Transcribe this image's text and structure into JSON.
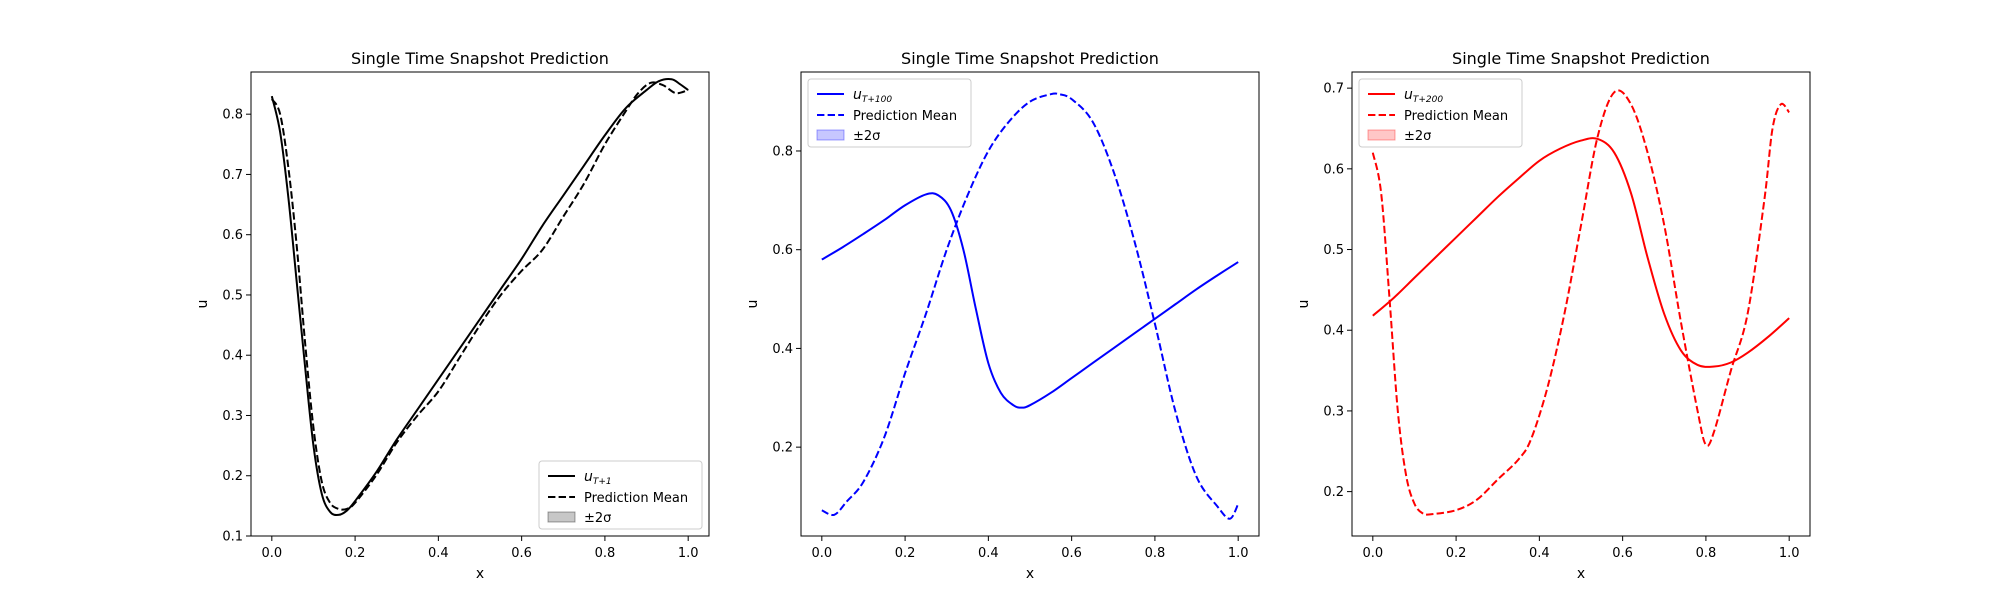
{
  "chart_data": [
    {
      "type": "line",
      "title": "Single Time Snapshot Prediction",
      "xlabel": "x",
      "ylabel": "u",
      "xlim": [
        -0.05,
        1.05
      ],
      "ylim": [
        0.1,
        0.87
      ],
      "xticks": [
        "0.0",
        "0.2",
        "0.4",
        "0.6",
        "0.8",
        "1.0"
      ],
      "yticks": [
        "0.1",
        "0.2",
        "0.3",
        "0.4",
        "0.5",
        "0.6",
        "0.7",
        "0.8"
      ],
      "color": "#000000",
      "legend_position": "lower right",
      "legend": [
        "u_{T+1}",
        "Prediction Mean",
        "±2σ"
      ],
      "legend_base": "u",
      "legend_sub": "T+1",
      "series": [
        {
          "name": "u_{T+1}",
          "style": "solid",
          "x": [
            0.0,
            0.02,
            0.04,
            0.06,
            0.08,
            0.1,
            0.12,
            0.14,
            0.16,
            0.18,
            0.2,
            0.25,
            0.3,
            0.35,
            0.4,
            0.45,
            0.5,
            0.55,
            0.6,
            0.65,
            0.7,
            0.75,
            0.8,
            0.85,
            0.9,
            0.93,
            0.96,
            0.98,
            1.0
          ],
          "y": [
            0.83,
            0.77,
            0.66,
            0.52,
            0.38,
            0.25,
            0.17,
            0.14,
            0.135,
            0.142,
            0.158,
            0.205,
            0.26,
            0.31,
            0.36,
            0.41,
            0.46,
            0.51,
            0.56,
            0.615,
            0.665,
            0.715,
            0.765,
            0.81,
            0.84,
            0.855,
            0.858,
            0.85,
            0.84
          ]
        },
        {
          "name": "Prediction Mean",
          "style": "dashed",
          "x": [
            0.0,
            0.02,
            0.04,
            0.06,
            0.08,
            0.1,
            0.12,
            0.14,
            0.16,
            0.18,
            0.2,
            0.25,
            0.3,
            0.35,
            0.4,
            0.45,
            0.5,
            0.55,
            0.6,
            0.65,
            0.7,
            0.75,
            0.8,
            0.85,
            0.88,
            0.91,
            0.94,
            0.97,
            1.0
          ],
          "y": [
            0.825,
            0.8,
            0.71,
            0.58,
            0.42,
            0.28,
            0.19,
            0.155,
            0.145,
            0.145,
            0.155,
            0.2,
            0.255,
            0.3,
            0.34,
            0.395,
            0.45,
            0.5,
            0.54,
            0.575,
            0.63,
            0.685,
            0.75,
            0.805,
            0.835,
            0.852,
            0.848,
            0.835,
            0.84
          ]
        }
      ]
    },
    {
      "type": "line",
      "title": "Single Time Snapshot Prediction",
      "xlabel": "x",
      "ylabel": "u",
      "xlim": [
        -0.05,
        1.05
      ],
      "ylim": [
        0.02,
        0.96
      ],
      "xticks": [
        "0.0",
        "0.2",
        "0.4",
        "0.6",
        "0.8",
        "1.0"
      ],
      "yticks": [
        "0.2",
        "0.4",
        "0.6",
        "0.8"
      ],
      "color": "#0000ff",
      "legend_position": "upper left",
      "legend": [
        "u_{T+100}",
        "Prediction Mean",
        "±2σ"
      ],
      "legend_base": "u",
      "legend_sub": "T+100",
      "series": [
        {
          "name": "u_{T+100}",
          "style": "solid",
          "x": [
            0.0,
            0.05,
            0.1,
            0.15,
            0.2,
            0.25,
            0.28,
            0.31,
            0.34,
            0.37,
            0.4,
            0.43,
            0.46,
            0.48,
            0.5,
            0.55,
            0.6,
            0.65,
            0.7,
            0.75,
            0.8,
            0.85,
            0.9,
            0.95,
            1.0
          ],
          "y": [
            0.58,
            0.605,
            0.632,
            0.66,
            0.69,
            0.712,
            0.71,
            0.68,
            0.6,
            0.48,
            0.37,
            0.31,
            0.285,
            0.28,
            0.285,
            0.31,
            0.34,
            0.37,
            0.4,
            0.43,
            0.46,
            0.49,
            0.52,
            0.548,
            0.575
          ]
        },
        {
          "name": "Prediction Mean",
          "style": "dashed",
          "x": [
            0.0,
            0.03,
            0.06,
            0.1,
            0.15,
            0.2,
            0.25,
            0.3,
            0.35,
            0.4,
            0.45,
            0.5,
            0.55,
            0.57,
            0.6,
            0.65,
            0.7,
            0.75,
            0.8,
            0.85,
            0.9,
            0.95,
            0.98,
            1.0
          ],
          "y": [
            0.072,
            0.063,
            0.09,
            0.13,
            0.22,
            0.35,
            0.47,
            0.6,
            0.71,
            0.8,
            0.86,
            0.9,
            0.915,
            0.915,
            0.905,
            0.86,
            0.76,
            0.62,
            0.45,
            0.27,
            0.14,
            0.08,
            0.055,
            0.085
          ]
        }
      ]
    },
    {
      "type": "line",
      "title": "Single Time Snapshot Prediction",
      "xlabel": "x",
      "ylabel": "u",
      "xlim": [
        -0.05,
        1.05
      ],
      "ylim": [
        0.145,
        0.72
      ],
      "xticks": [
        "0.0",
        "0.2",
        "0.4",
        "0.6",
        "0.8",
        "1.0"
      ],
      "yticks": [
        "0.2",
        "0.3",
        "0.4",
        "0.5",
        "0.6",
        "0.7"
      ],
      "color": "#ff0000",
      "legend_position": "upper left",
      "legend": [
        "u_{T+200}",
        "Prediction Mean",
        "±2σ"
      ],
      "legend_base": "u",
      "legend_sub": "T+200",
      "series": [
        {
          "name": "u_{T+200}",
          "style": "solid",
          "x": [
            0.0,
            0.05,
            0.1,
            0.15,
            0.2,
            0.25,
            0.3,
            0.35,
            0.4,
            0.45,
            0.5,
            0.54,
            0.58,
            0.62,
            0.66,
            0.7,
            0.74,
            0.78,
            0.82,
            0.86,
            0.9,
            0.95,
            1.0
          ],
          "y": [
            0.418,
            0.44,
            0.465,
            0.49,
            0.515,
            0.54,
            0.565,
            0.588,
            0.61,
            0.625,
            0.635,
            0.637,
            0.62,
            0.57,
            0.49,
            0.42,
            0.375,
            0.357,
            0.355,
            0.36,
            0.372,
            0.392,
            0.415
          ]
        },
        {
          "name": "Prediction Mean",
          "style": "dashed",
          "x": [
            0.0,
            0.02,
            0.04,
            0.06,
            0.08,
            0.1,
            0.12,
            0.14,
            0.2,
            0.25,
            0.3,
            0.35,
            0.38,
            0.42,
            0.46,
            0.5,
            0.54,
            0.58,
            0.62,
            0.66,
            0.7,
            0.74,
            0.78,
            0.8,
            0.82,
            0.86,
            0.9,
            0.94,
            0.96,
            0.98,
            1.0
          ],
          "y": [
            0.62,
            0.57,
            0.44,
            0.3,
            0.22,
            0.185,
            0.173,
            0.172,
            0.177,
            0.19,
            0.215,
            0.24,
            0.265,
            0.33,
            0.42,
            0.53,
            0.64,
            0.695,
            0.68,
            0.62,
            0.53,
            0.41,
            0.3,
            0.258,
            0.275,
            0.35,
            0.42,
            0.56,
            0.65,
            0.68,
            0.67
          ]
        }
      ]
    }
  ]
}
